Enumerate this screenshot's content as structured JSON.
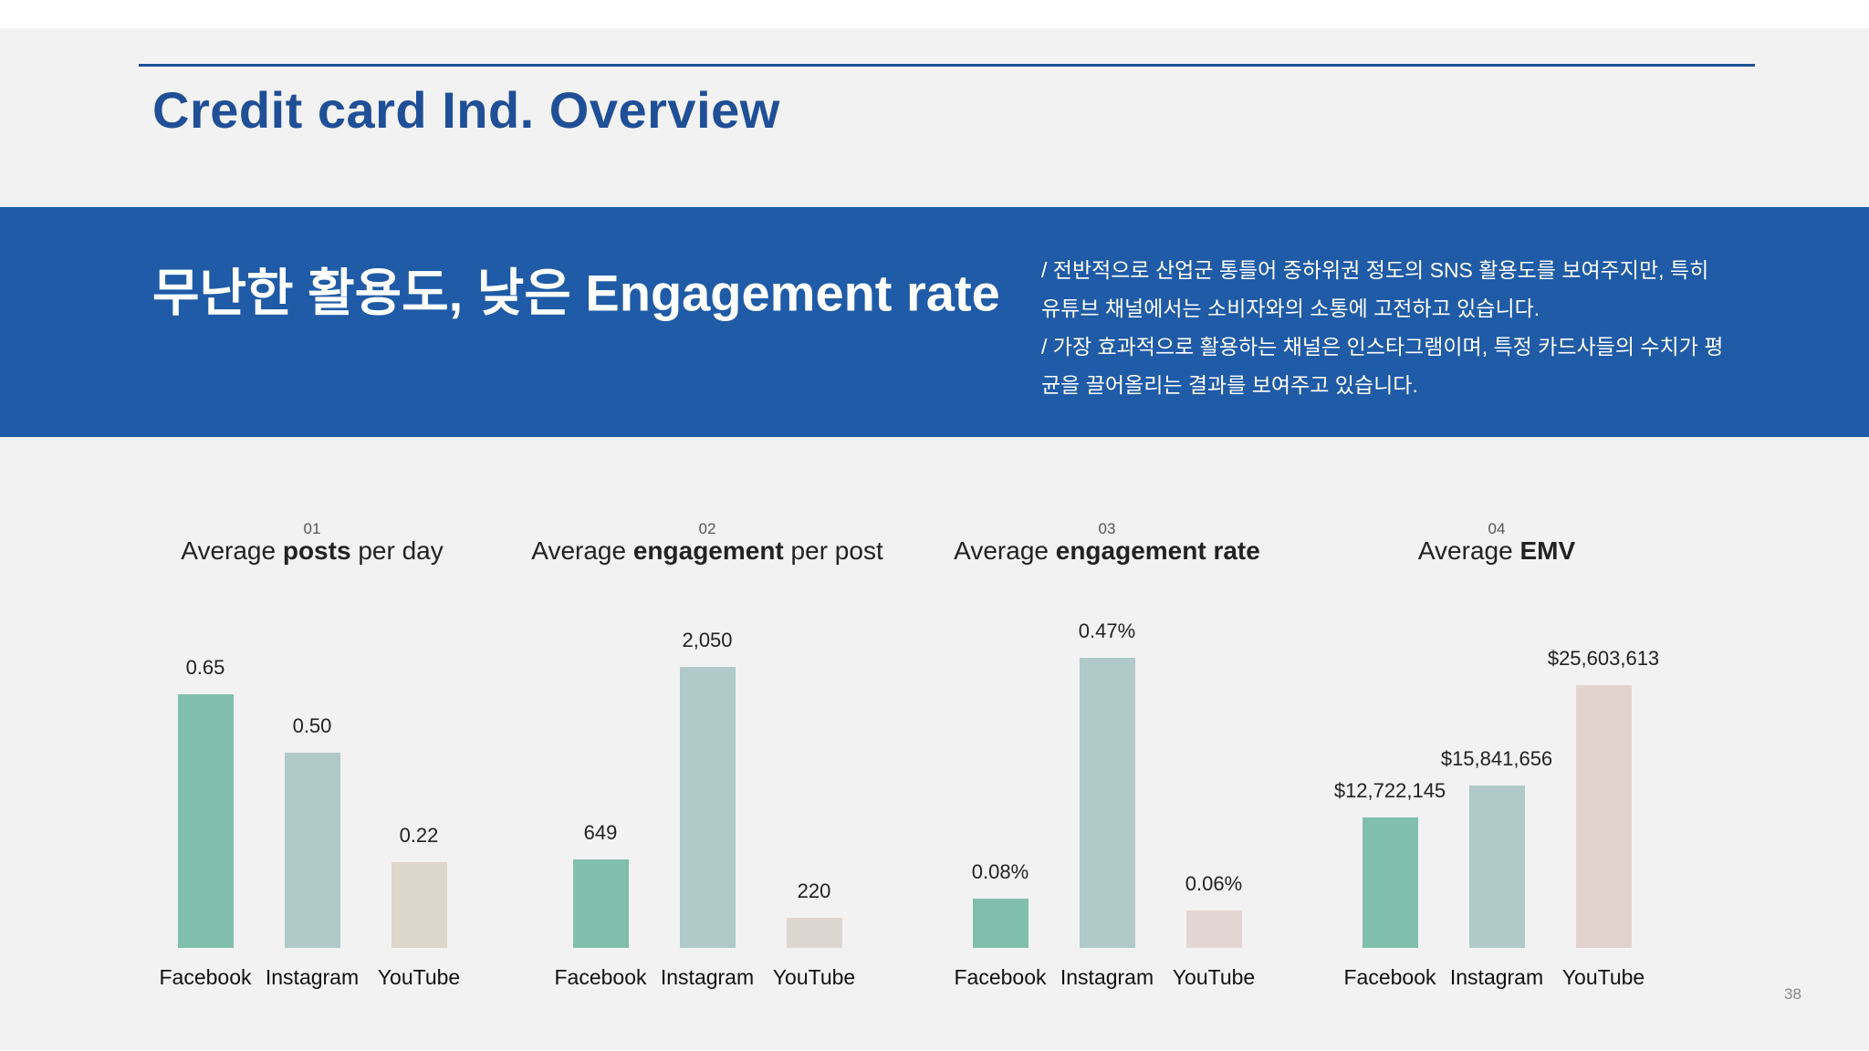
{
  "header": {
    "title": "Credit card Ind. Overview"
  },
  "banner": {
    "headline": "무난한 활용도, 낮은 Engagement rate",
    "description_lines": [
      "/ 전반적으로 산업군 통틀어 중하위권 정도의 SNS 활용도를 보여주지만, 특히",
      "유튜브 채널에서는 소비자와의 소통에 고전하고 있습니다.",
      "/ 가장 효과적으로 활용하는 채널은 인스타그램이며, 특정 카드사들의 수치가 평",
      "균을 끌어올리는 결과를 보여주고 있습니다."
    ]
  },
  "colors": {
    "accent": "#1f4f96",
    "banner": "#1f5ba6",
    "facebook": "#7fbfab",
    "instagram": "#b0c9c9",
    "youtube_1": "#ddd6cb",
    "youtube_2": "#ddd6d0",
    "youtube_3": "#e3d6d2",
    "youtube_4": "#e3d3cf"
  },
  "chart_data": [
    {
      "type": "bar",
      "number": "01",
      "title_parts": [
        {
          "text": "Average ",
          "bold": false
        },
        {
          "text": "posts",
          "bold": true
        },
        {
          "text": " per day",
          "bold": false
        }
      ],
      "categories": [
        "Facebook",
        "Instagram",
        "YouTube"
      ],
      "values": [
        0.65,
        0.5,
        0.22
      ],
      "value_labels": [
        "0.65",
        "0.50",
        "0.22"
      ],
      "ylim": [
        0,
        0.79
      ],
      "colors": [
        "#7fbfab",
        "#b0c9c9",
        "#ddd6cb"
      ]
    },
    {
      "type": "bar",
      "number": "02",
      "title_parts": [
        {
          "text": "Average ",
          "bold": false
        },
        {
          "text": "engagement",
          "bold": true
        },
        {
          "text": " per post",
          "bold": false
        }
      ],
      "categories": [
        "Facebook",
        "Instagram",
        "YouTube"
      ],
      "values": [
        649,
        2050,
        220
      ],
      "value_labels": [
        "649",
        "2,050",
        "220"
      ],
      "ylim": [
        0,
        2250
      ],
      "colors": [
        "#7fbfab",
        "#b0c9c9",
        "#ddd6d0"
      ]
    },
    {
      "type": "bar",
      "number": "03",
      "title_parts": [
        {
          "text": "Average ",
          "bold": false
        },
        {
          "text": "engagement rate",
          "bold": true
        }
      ],
      "categories": [
        "Facebook",
        "Instagram",
        "YouTube"
      ],
      "values": [
        0.08,
        0.47,
        0.06
      ],
      "value_labels": [
        "0.08%",
        "0.47%",
        "0.06%"
      ],
      "ylim": [
        0,
        0.5
      ],
      "colors": [
        "#7fbfab",
        "#b0c9c9",
        "#e3d6d2"
      ]
    },
    {
      "type": "bar",
      "number": "04",
      "title_parts": [
        {
          "text": "Average ",
          "bold": false
        },
        {
          "text": "EMV",
          "bold": true
        }
      ],
      "categories": [
        "Facebook",
        "Instagram",
        "YouTube"
      ],
      "values": [
        12722145,
        15841656,
        25603613
      ],
      "value_labels": [
        "$12,722,145",
        "$15,841,656",
        "$25,603,613"
      ],
      "ylim": [
        0,
        30000000
      ],
      "colors": [
        "#7fbfab",
        "#b0c9c9",
        "#e3d3cf"
      ]
    }
  ],
  "footer": {
    "page_number": "38"
  }
}
